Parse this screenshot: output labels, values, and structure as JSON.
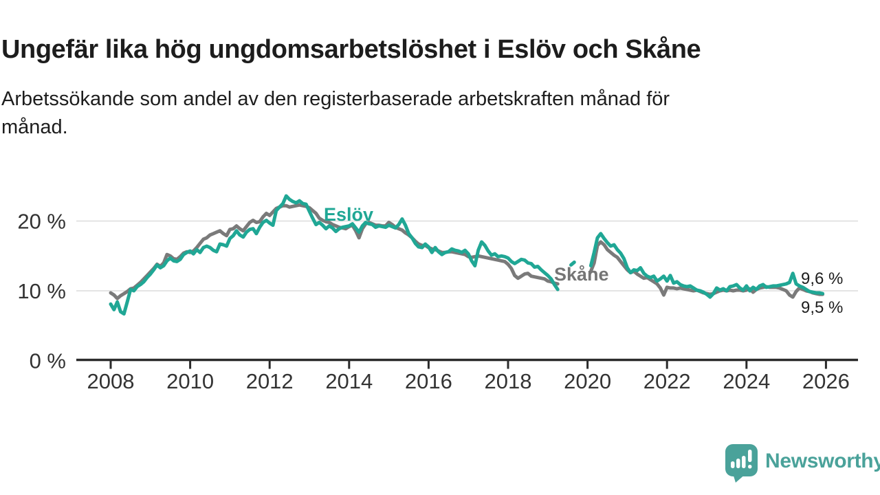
{
  "title": "Ungefär lika hög ungdomsarbetslöshet i Eslöv och Skåne",
  "subtitle": {
    "line1": "Arbetssökande som andel av den registerbaserade arbetskraften månad för",
    "line2": "månad."
  },
  "colors": {
    "eslov_teal": "#20a795",
    "skane_gray": "#7a7a7a",
    "grid": "#dcdcdc",
    "axis": "#2b2b2b",
    "text": "#1d1d1d",
    "tick_text": "#333333",
    "logo_teal": "#4aa29a"
  },
  "logo": {
    "text": "Newsworthy"
  },
  "chart_data": {
    "type": "line",
    "unit": "%",
    "x_axis": {
      "min": 2008,
      "max": 2026,
      "ticks": [
        2008,
        2010,
        2012,
        2014,
        2016,
        2018,
        2020,
        2022,
        2024,
        2026
      ]
    },
    "y_axis": {
      "ticks": [
        {
          "value": 0,
          "label": "0 %"
        },
        {
          "value": 10,
          "label": "10 %"
        },
        {
          "value": 20,
          "label": "20 %"
        }
      ],
      "ylim": [
        0,
        25
      ],
      "grid": true
    },
    "step_months": 1,
    "series": [
      {
        "name": "Eslöv",
        "label": "Eslöv",
        "end_label": "9,6 %",
        "color": "#20a795",
        "segments": [
          {
            "start": 2008.0,
            "step": 0.083333,
            "values": [
              8.1,
              7.3,
              8.4,
              7.0,
              6.7,
              8.4,
              10.2,
              10.0,
              10.6,
              10.9,
              11.3,
              11.9,
              12.4,
              13.0,
              13.7,
              13.3,
              13.6,
              14.3,
              14.7,
              14.3,
              14.2,
              14.5,
              15.2,
              15.5,
              15.7,
              15.3,
              15.9,
              15.5,
              16.2,
              16.4,
              16.2,
              15.8,
              15.6,
              16.7,
              16.6,
              16.4,
              17.5,
              17.9,
              18.6,
              18.0,
              17.7,
              18.4,
              18.8,
              18.9,
              18.2,
              19.1,
              19.8,
              20.1,
              19.7,
              19.4,
              21.5,
              22.0,
              22.5,
              23.6,
              23.1,
              22.8,
              22.6,
              22.9,
              22.5,
              22.4,
              21.4,
              20.4,
              19.5,
              19.8,
              19.4,
              18.9,
              19.3,
              19.0,
              18.5,
              18.9,
              19.1,
              19.2,
              19.3,
              19.6,
              19.0,
              18.4,
              19.3,
              19.8,
              19.6,
              19.5,
              19.1,
              19.3,
              19.2,
              19.1,
              19.4,
              19.2,
              19.0,
              19.5,
              20.3,
              19.4,
              18.2,
              17.6,
              16.8,
              16.3,
              16.2,
              16.7,
              16.3,
              15.5,
              16.2,
              15.6,
              15.2,
              15.5,
              15.6,
              16.0,
              15.8,
              15.7,
              15.5,
              15.8,
              15.3,
              14.3,
              13.6,
              15.8,
              17.0,
              16.5,
              15.7,
              15.1,
              15.3,
              14.9,
              15.0,
              14.9,
              14.7,
              14.2,
              13.9,
              14.2,
              14.5,
              14.4,
              14.0,
              13.9,
              13.4,
              13.5,
              13.0,
              12.6,
              12.2,
              11.7,
              10.9,
              10.2
            ]
          },
          {
            "start": 2019.583,
            "step": 0.083333,
            "values": [
              13.7,
              14.1
            ]
          },
          {
            "start": 2020.083,
            "step": 0.083333,
            "values": [
              13.6,
              15.5,
              17.6,
              18.2,
              17.5,
              16.9,
              16.4,
              16.6,
              15.9,
              15.4,
              14.6,
              13.3,
              12.6,
              13.0,
              12.9,
              13.3,
              12.5,
              12.1,
              11.9,
              12.1,
              11.4,
              11.7,
              12.1,
              11.4,
              12.2,
              11.1,
              11.3,
              10.9,
              10.7,
              10.6,
              10.7,
              10.4,
              10.1,
              10.0,
              9.8,
              9.5,
              9.1,
              9.6,
              10.4,
              10.1,
              10.3,
              10.0,
              10.6,
              10.7,
              10.9,
              10.4,
              10.1,
              10.7,
              10.0,
              10.5,
              10.2,
              10.7,
              10.9,
              10.5,
              10.6,
              10.7,
              10.7,
              10.8,
              10.9,
              11.0,
              11.2,
              12.5,
              11.0,
              10.7,
              10.5,
              10.2,
              9.9,
              9.8,
              9.7,
              9.7,
              9.6
            ]
          }
        ]
      },
      {
        "name": "Skåne",
        "label": "Skåne",
        "end_label": "9,5 %",
        "color": "#7a7a7a",
        "segments": [
          {
            "start": 2008.0,
            "step": 0.083333,
            "values": [
              9.7,
              9.4,
              8.9,
              9.3,
              9.6,
              9.9,
              10.3,
              10.4,
              10.8,
              11.2,
              11.7,
              12.2,
              12.7,
              13.2,
              13.8,
              13.5,
              14.0,
              15.2,
              15.0,
              14.6,
              14.5,
              14.9,
              15.4,
              15.6,
              15.5,
              15.7,
              16.2,
              16.8,
              17.4,
              17.6,
              18.0,
              18.2,
              18.4,
              18.6,
              18.2,
              17.9,
              18.8,
              18.9,
              19.3,
              18.9,
              18.6,
              19.2,
              19.8,
              20.1,
              19.8,
              19.9,
              20.6,
              21.1,
              20.8,
              21.3,
              21.8,
              22.0,
              22.2,
              22.2,
              22.0,
              22.1,
              22.2,
              22.3,
              22.2,
              22.1,
              21.9,
              21.5,
              21.1,
              20.4,
              20.1,
              19.9,
              19.8,
              19.5,
              19.3,
              19.1,
              19.0,
              18.9,
              19.2,
              19.4,
              18.6,
              17.6,
              18.9,
              19.6,
              19.8,
              19.6,
              19.4,
              19.4,
              19.3,
              19.3,
              19.8,
              19.5,
              19.1,
              18.9,
              18.7,
              18.3,
              18.0,
              17.6,
              17.1,
              16.7,
              16.5,
              16.5,
              16.2,
              16.0,
              15.9,
              15.7,
              15.5,
              15.5,
              15.6,
              15.6,
              15.5,
              15.4,
              15.3,
              15.2,
              14.9,
              14.8,
              14.9,
              15.0,
              14.9,
              14.8,
              14.7,
              14.6,
              14.5,
              14.4,
              14.3,
              14.2,
              13.8,
              13.2,
              12.2,
              11.8,
              12.1,
              12.4,
              12.5,
              12.1,
              12.0,
              11.9,
              11.8,
              11.7,
              11.4,
              11.3,
              11.1,
              11.0
            ]
          },
          {
            "start": 2020.083,
            "step": 0.083333,
            "values": [
              12.8,
              14.0,
              16.5,
              17.0,
              16.6,
              15.9,
              15.5,
              15.1,
              14.8,
              14.2,
              13.6,
              13.0,
              12.6,
              12.8,
              12.4,
              12.1,
              11.8,
              11.9,
              11.6,
              11.3,
              11.0,
              10.4,
              9.4,
              10.5,
              10.4,
              10.4,
              10.3,
              10.4,
              10.3,
              10.2,
              10.1,
              10.0,
              10.1,
              9.9,
              9.7,
              9.6,
              9.5,
              9.6,
              9.8,
              10.0,
              10.1,
              10.0,
              10.1,
              10.0,
              10.1,
              10.1,
              10.0,
              10.1,
              10.3,
              9.8,
              10.2,
              10.4,
              10.5,
              10.6,
              10.5,
              10.5,
              10.5,
              10.4,
              10.2,
              10.0,
              9.4,
              9.1,
              9.9,
              10.4,
              10.2,
              10.0,
              9.9,
              9.7,
              9.6,
              9.5,
              9.5
            ]
          }
        ]
      }
    ]
  }
}
